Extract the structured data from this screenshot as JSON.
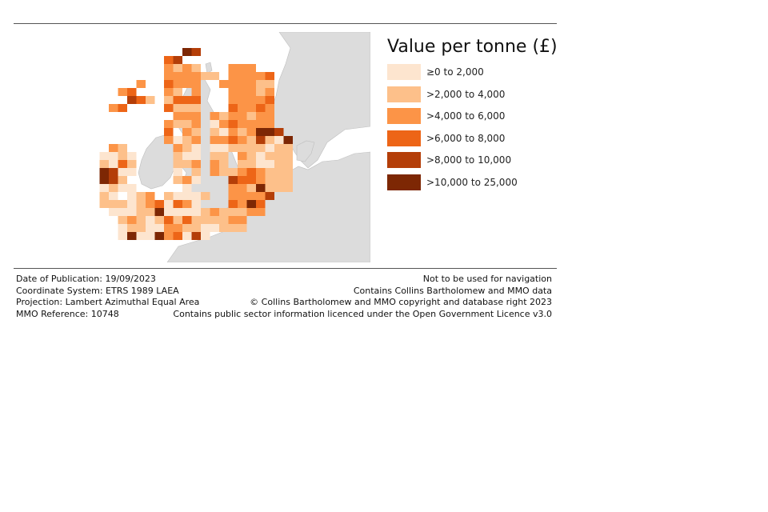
{
  "legend": {
    "title": "Value per tonne (£)",
    "items": [
      {
        "label": "≥0 to 2,000",
        "color": "#fde5cf"
      },
      {
        "label": ">2,000 to 4,000",
        "color": "#fdc08a"
      },
      {
        "label": ">4,000 to 6,000",
        "color": "#fc9447"
      },
      {
        "label": ">6,000 to 8,000",
        "color": "#ed6517"
      },
      {
        "label": ">8,000 to 10,000",
        "color": "#b43e08"
      },
      {
        "label": ">10,000 to 25,000",
        "color": "#7d2704"
      }
    ]
  },
  "footer": {
    "left": [
      "Date of Publication: 19/09/2023",
      "Coordinate System: ETRS 1989 LAEA",
      "Projection: Lambert Azimuthal Equal Area",
      "MMO Reference: 10748"
    ],
    "right": [
      "Not to be used for navigation",
      "Contains Collins Bartholomew and MMO data",
      "© Collins Bartholomew and MMO copyright and database right 2023",
      "Contains public sector information licenced under the Open Government Licence v3.0"
    ]
  },
  "colors": {
    "land": "#dcdcdc",
    "sea": "#ffffff",
    "land_border": "#bfbfbf"
  }
}
